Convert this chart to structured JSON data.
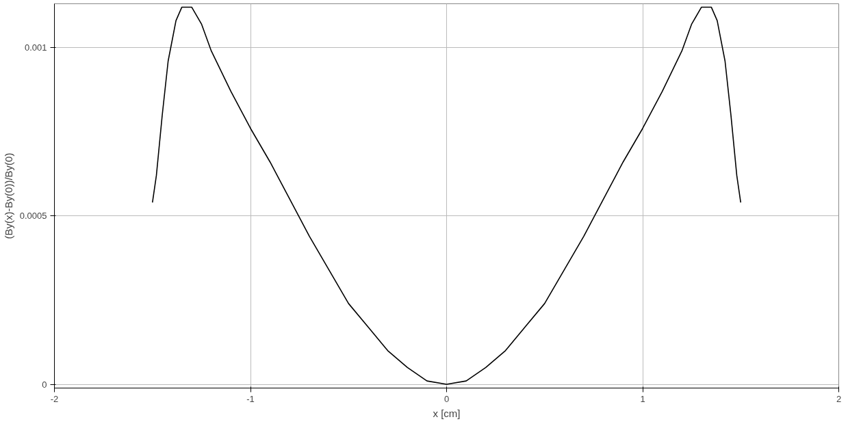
{
  "chart_data": {
    "type": "line",
    "xlabel": "x [cm]",
    "ylabel": "(By(x)-By(0))/By(0)",
    "x": [
      -1.5,
      -1.48,
      -1.45,
      -1.42,
      -1.38,
      -1.35,
      -1.33,
      -1.3,
      -1.25,
      -1.2,
      -1.1,
      -1.0,
      -0.9,
      -0.8,
      -0.7,
      -0.6,
      -0.5,
      -0.4,
      -0.3,
      -0.2,
      -0.1,
      0,
      0.1,
      0.2,
      0.3,
      0.4,
      0.5,
      0.6,
      0.7,
      0.8,
      0.9,
      1.0,
      1.1,
      1.2,
      1.25,
      1.3,
      1.33,
      1.35,
      1.38,
      1.42,
      1.45,
      1.48,
      1.5
    ],
    "series": [
      {
        "color": "#000000",
        "values": [
          0.00054,
          0.00062,
          0.0008,
          0.00096,
          0.00108,
          0.00112,
          0.00112,
          0.00112,
          0.00107,
          0.00099,
          0.00087,
          0.00076,
          0.00066,
          0.00055,
          0.00044,
          0.00034,
          0.00024,
          0.00017,
          0.0001,
          5e-05,
          1e-05,
          0,
          1e-05,
          5e-05,
          0.0001,
          0.00017,
          0.00024,
          0.00034,
          0.00044,
          0.00055,
          0.00066,
          0.00076,
          0.00087,
          0.00099,
          0.00107,
          0.00112,
          0.00112,
          0.00112,
          0.00108,
          0.00096,
          0.0008,
          0.00062,
          0.00054
        ]
      }
    ],
    "xlim": [
      -2,
      2
    ],
    "ylim": [
      -1.1e-05,
      0.00113
    ],
    "xticks": [
      -2,
      -1,
      0,
      1,
      2
    ],
    "yticks": [
      0,
      0.0005,
      0.001
    ],
    "grid": true,
    "marker": "none",
    "line_style": "solid"
  }
}
